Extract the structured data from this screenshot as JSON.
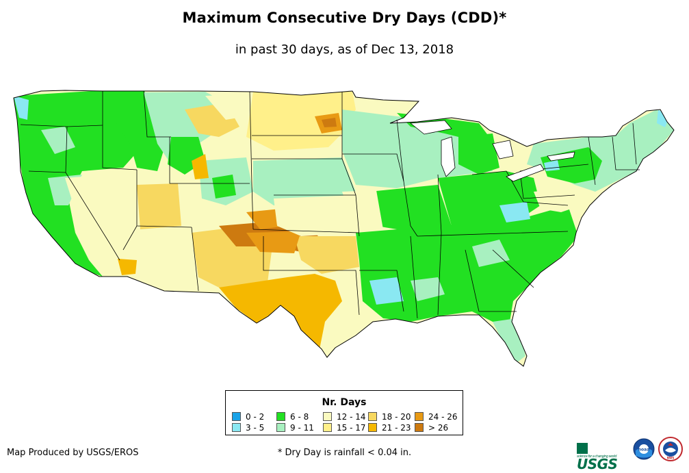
{
  "title": "Maximum Consecutive Dry Days (CDD)*",
  "subtitle": "in past 30 days, as of Dec 13, 2018",
  "legend": {
    "title": "Nr. Days",
    "items": [
      {
        "label": "0 - 2",
        "color": "#1aa3e8"
      },
      {
        "label": "3 - 5",
        "color": "#8ae8f2"
      },
      {
        "label": "6 - 8",
        "color": "#22e022"
      },
      {
        "label": "9 - 11",
        "color": "#a8f0c0"
      },
      {
        "label": "12 - 14",
        "color": "#fafac0"
      },
      {
        "label": "15 - 17",
        "color": "#fff08a"
      },
      {
        "label": "18 - 20",
        "color": "#f7d860"
      },
      {
        "label": "21 - 23",
        "color": "#f5b800"
      },
      {
        "label": "24 - 26",
        "color": "#e89a14"
      },
      {
        "label": "> 26",
        "color": "#cd7a10"
      }
    ]
  },
  "credit": "Map Produced by USGS/EROS",
  "footnote": "* Dry Day is rainfall < 0.04 in.",
  "logos": {
    "usgs": "USGS",
    "usgs_tagline": "science for a changing world",
    "noaa": "noaa",
    "nws": "NWS"
  }
}
